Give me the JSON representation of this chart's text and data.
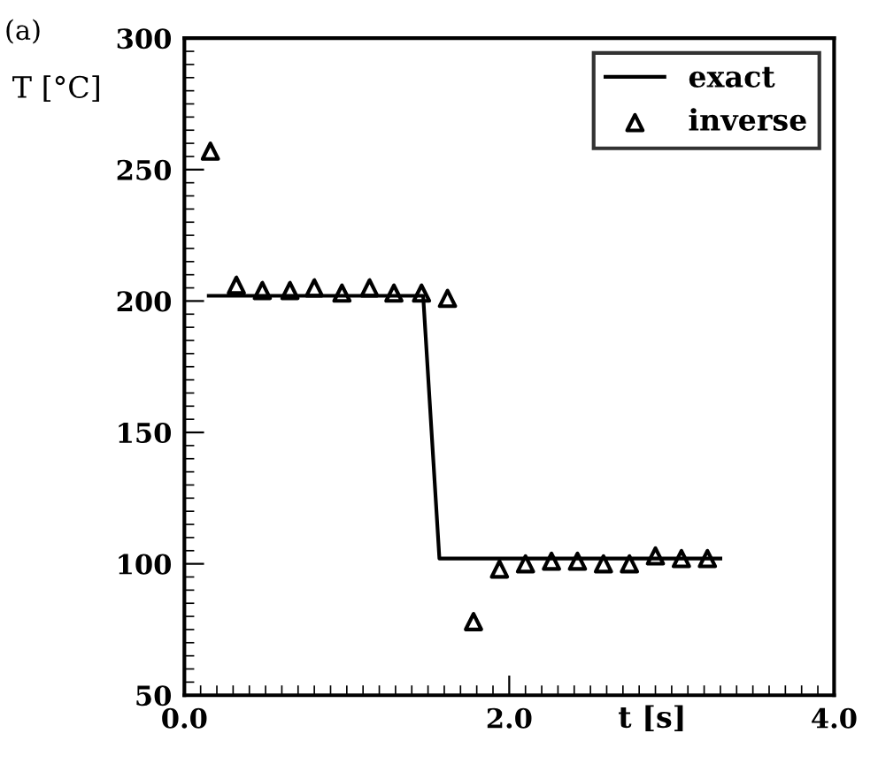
{
  "chart_data": {
    "type": "line",
    "xlabel": "t [s]",
    "ylabel": "T [°C]",
    "annotations": [
      "(a)"
    ],
    "xlim": [
      0,
      4
    ],
    "ylim": [
      50,
      300
    ],
    "xticks": [
      {
        "value": 0,
        "label": "0.0"
      },
      {
        "value": 2,
        "label": "2.0"
      },
      {
        "value": 4,
        "label": "4.0"
      }
    ],
    "yticks": [
      50,
      100,
      150,
      200,
      250,
      300
    ],
    "grid": false,
    "legend": "top right",
    "series": [
      {
        "name": "exact",
        "color": "#000000",
        "marker": "none",
        "x": [
          0.15,
          1.47,
          1.57,
          3.3
        ],
        "values": [
          202,
          202,
          102,
          102
        ]
      },
      {
        "name": "inverse",
        "type": "scatter",
        "color": "#000000",
        "marker": "triangle",
        "x": [
          0.16,
          0.32,
          0.48,
          0.65,
          0.8,
          0.97,
          1.14,
          1.29,
          1.46,
          1.62,
          1.78,
          1.94,
          2.1,
          2.26,
          2.42,
          2.58,
          2.74,
          2.9,
          3.06,
          3.22
        ],
        "values": [
          257,
          206,
          204,
          204,
          205,
          203,
          205,
          203,
          203,
          201,
          78,
          98,
          100,
          101,
          101,
          100,
          100,
          103,
          102,
          102
        ]
      }
    ]
  }
}
